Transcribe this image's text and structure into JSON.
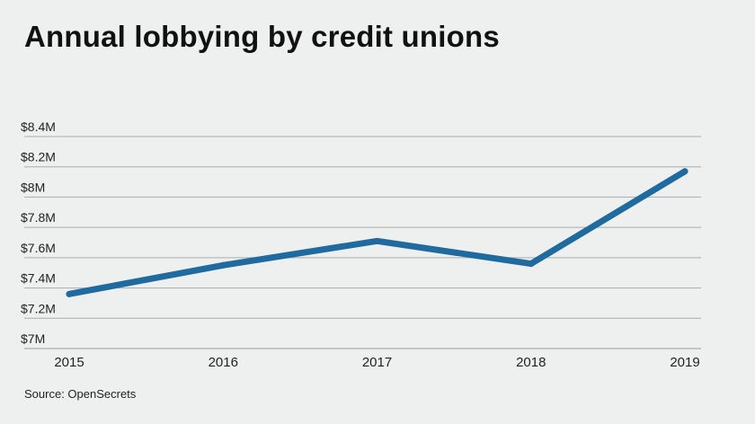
{
  "title": "Annual lobbying by credit unions",
  "source": "Source: OpenSecrets",
  "chart_data": {
    "type": "line",
    "title": "Annual lobbying by credit unions",
    "xlabel": "",
    "ylabel": "",
    "x": [
      "2015",
      "2016",
      "2017",
      "2018",
      "2019"
    ],
    "y_ticks": [
      "$7M",
      "$7.2M",
      "$7.4M",
      "$7.6M",
      "$7.8M",
      "$8M",
      "$8.2M",
      "$8.4M"
    ],
    "ylim": [
      7.0,
      8.4
    ],
    "series": [
      {
        "values": [
          7.36,
          7.55,
          7.71,
          7.56,
          8.17
        ]
      }
    ],
    "grid": true,
    "line_color": "#1f6a9e",
    "grid_color": "#a9acad"
  }
}
